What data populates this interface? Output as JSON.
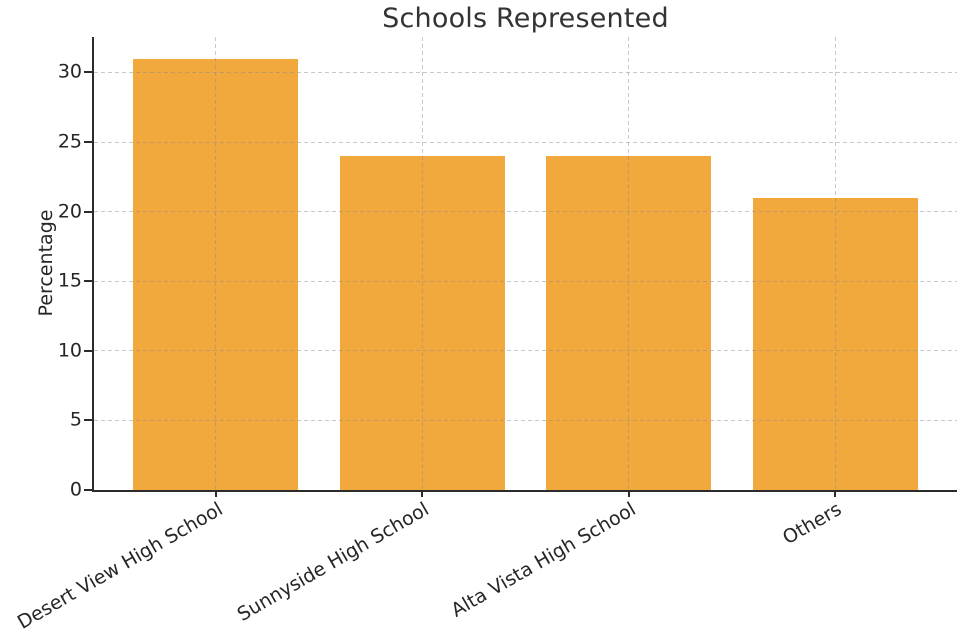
{
  "figure": {
    "background": "#ffffff",
    "text_color": "#262626",
    "title_color": "#333333",
    "spine_color": "#2b2b2b"
  },
  "chart_data": {
    "type": "bar",
    "title": "Schools Represented",
    "categories": [
      "Desert View High School",
      "Sunnyside High School",
      "Alta Vista High School",
      "Others"
    ],
    "values": [
      31,
      24,
      24,
      21
    ],
    "xlabel": "",
    "ylabel": "Percentage",
    "ylim": [
      0,
      32.55
    ],
    "yticks": [
      0,
      5,
      10,
      15,
      20,
      25,
      30
    ],
    "bar_color": "#F1A83C",
    "bar_width_fraction": 0.8,
    "grid": true,
    "grid_axis": "both",
    "grid_style": "dashed",
    "legend": false,
    "x_tick_rotation": 30
  }
}
